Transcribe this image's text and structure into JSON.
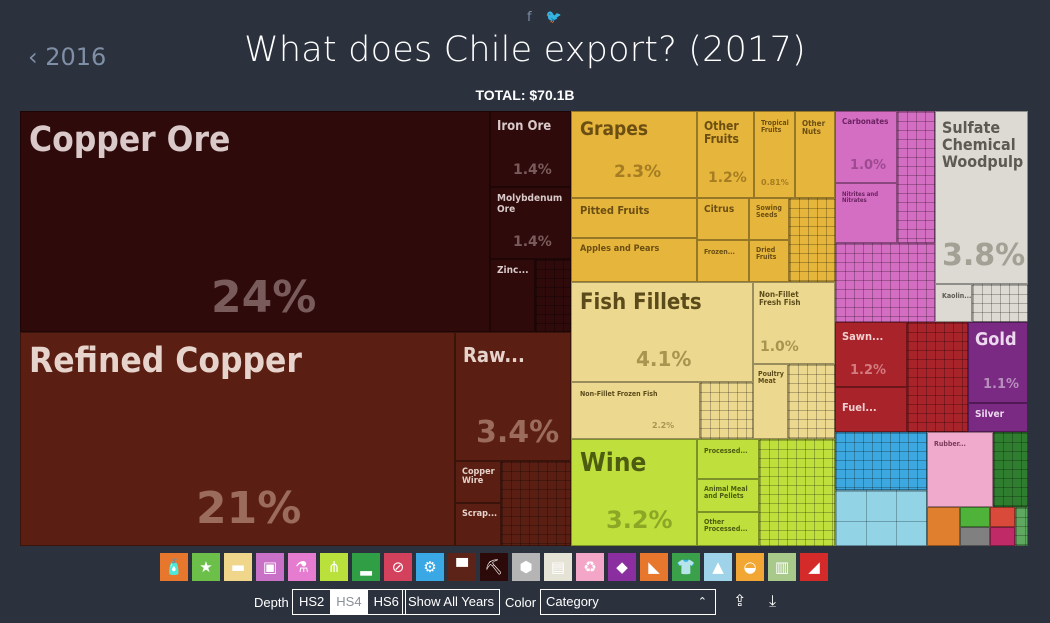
{
  "header": {
    "facebook_icon": "f",
    "twitter_icon": "🐦",
    "back_label": "‹ 2016",
    "title": "What does Chile export? (2017)",
    "total": "TOTAL: $70.1B"
  },
  "treemap": {
    "copper_ore": {
      "label": "Copper Ore",
      "pct": "24%"
    },
    "iron_ore": {
      "label": "Iron Ore",
      "pct": "1.4%"
    },
    "molybdenum": {
      "label": "Molybdenum Ore",
      "pct": "1.4%"
    },
    "zinc": {
      "label": "Zinc..."
    },
    "refined_copper": {
      "label": "Refined Copper",
      "pct": "21%"
    },
    "raw": {
      "label": "Raw...",
      "pct": "3.4%"
    },
    "copper_wire": {
      "label": "Copper Wire"
    },
    "scrap": {
      "label": "Scrap..."
    },
    "grapes": {
      "label": "Grapes",
      "pct": "2.3%"
    },
    "pitted_fruits": {
      "label": "Pitted Fruits"
    },
    "apples": {
      "label": "Apples and Pears"
    },
    "other_fruits": {
      "label": "Other Fruits",
      "pct": "1.2%"
    },
    "tropical": {
      "label": "Tropical Fruits",
      "pct": "0.81%"
    },
    "other_nuts": {
      "label": "Other Nuts"
    },
    "citrus": {
      "label": "Citrus"
    },
    "sowing": {
      "label": "Sowing Seeds"
    },
    "frozen": {
      "label": "Frozen..."
    },
    "dried": {
      "label": "Dried Fruits"
    },
    "fish_fillets": {
      "label": "Fish Fillets",
      "pct": "4.1%"
    },
    "nonfillet_frozen": {
      "label": "Non-Fillet Frozen Fish",
      "pct": "2.2%"
    },
    "nonfillet_fresh": {
      "label": "Non-Fillet Fresh Fish",
      "pct": "1.0%"
    },
    "poultry": {
      "label": "Poultry Meat"
    },
    "wine": {
      "label": "Wine",
      "pct": "3.2%"
    },
    "processed1": {
      "label": "Processed..."
    },
    "animal_meal": {
      "label": "Animal Meal and Pellets"
    },
    "other_processed": {
      "label": "Other Processed..."
    },
    "carbonates": {
      "label": "Carbonates",
      "pct": "1.0%"
    },
    "nitrites": {
      "label": "Nitrites and Nitrates"
    },
    "sulfate": {
      "label": "Sulfate Chemical Woodpulp",
      "pct": "3.8%"
    },
    "kaolin": {
      "label": "Kaolin..."
    },
    "sawn": {
      "label": "Sawn...",
      "pct": "1.2%"
    },
    "fuel": {
      "label": "Fuel..."
    },
    "gold": {
      "label": "Gold",
      "pct": "1.1%"
    },
    "silver": {
      "label": "Silver"
    },
    "rubber": {
      "label": "Rubber..."
    }
  },
  "category_icons": [
    {
      "name": "chemicals-bottle-icon",
      "glyph": "🧴",
      "color": "#e8772e"
    },
    {
      "name": "star-icon",
      "glyph": "★",
      "color": "#6cc04a"
    },
    {
      "name": "animal-hides-icon",
      "glyph": "▬",
      "color": "#f0d68a"
    },
    {
      "name": "picture-frame-icon",
      "glyph": "▣",
      "color": "#c971c7"
    },
    {
      "name": "flask-icon",
      "glyph": "⚗",
      "color": "#e67ccf"
    },
    {
      "name": "wheat-icon",
      "glyph": "⋔",
      "color": "#b9e03b"
    },
    {
      "name": "shoe-icon",
      "glyph": "▂",
      "color": "#2f9e44"
    },
    {
      "name": "no-sign-icon",
      "glyph": "⊘",
      "color": "#d4415c"
    },
    {
      "name": "gears-icon",
      "glyph": "⚙",
      "color": "#3ba8e6"
    },
    {
      "name": "anvil-icon",
      "glyph": "▀",
      "color": "#5c2418"
    },
    {
      "name": "pickaxe-icon",
      "glyph": "⛏",
      "color": "#2d0a0a"
    },
    {
      "name": "box-icon",
      "glyph": "⬢",
      "color": "#b5b5b5"
    },
    {
      "name": "paper-icon",
      "glyph": "▤",
      "color": "#e5e2d6"
    },
    {
      "name": "recycle-icon",
      "glyph": "♻",
      "color": "#f4a6c8"
    },
    {
      "name": "diamond-icon",
      "glyph": "◆",
      "color": "#8b2fa0"
    },
    {
      "name": "ceramic-icon",
      "glyph": "◣",
      "color": "#e8772e"
    },
    {
      "name": "shirt-icon",
      "glyph": "👕",
      "color": "#3aa04a"
    },
    {
      "name": "road-icon",
      "glyph": "▲",
      "color": "#9fd3ea"
    },
    {
      "name": "food-bowl-icon",
      "glyph": "◒",
      "color": "#f2a634"
    },
    {
      "name": "building-icon",
      "glyph": "▥",
      "color": "#a8c98a"
    },
    {
      "name": "ticket-icon",
      "glyph": "◢",
      "color": "#d42a2a"
    }
  ],
  "controls": {
    "depth_label": "Depth",
    "hs2": "HS2",
    "hs4": "HS4",
    "hs6": "HS6",
    "show_all_years": "Show All Years",
    "color_label": "Color",
    "color_value": "Category",
    "chevron": "⌃",
    "share_icon": "⇪",
    "download_icon": "⤓"
  }
}
